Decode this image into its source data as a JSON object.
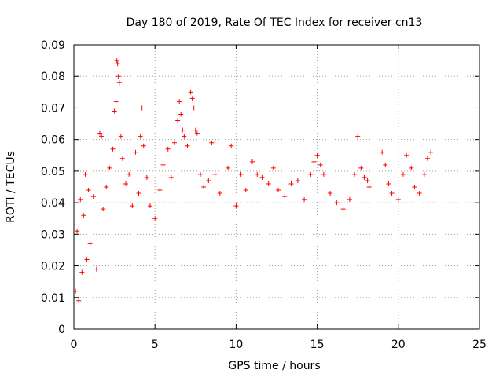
{
  "chart_data": {
    "type": "scatter",
    "title": "Day 180 of 2019, Rate Of TEC Index for receiver cn13",
    "xlabel": "GPS time / hours",
    "ylabel": "ROTI / TECUs",
    "xlim": [
      0,
      25
    ],
    "ylim": [
      0,
      0.09
    ],
    "xticks": [
      0,
      5,
      10,
      15,
      20,
      25
    ],
    "yticks": [
      0,
      0.01,
      0.02,
      0.03,
      0.04,
      0.05,
      0.06,
      0.07,
      0.08,
      0.09
    ],
    "xtick_labels": [
      "0",
      "5",
      "10",
      "15",
      "20",
      "25"
    ],
    "ytick_labels": [
      "0",
      "0.01",
      "0.02",
      "0.03",
      "0.04",
      "0.05",
      "0.06",
      "0.07",
      "0.08",
      "0.09"
    ],
    "grid": true,
    "marker": "+",
    "series_color": "#ff0000",
    "series": [
      {
        "name": "ROTI",
        "points": [
          [
            0.1,
            0.012
          ],
          [
            0.2,
            0.031
          ],
          [
            0.3,
            0.009
          ],
          [
            0.4,
            0.041
          ],
          [
            0.5,
            0.018
          ],
          [
            0.6,
            0.036
          ],
          [
            0.7,
            0.049
          ],
          [
            0.8,
            0.022
          ],
          [
            0.9,
            0.044
          ],
          [
            1.0,
            0.027
          ],
          [
            1.2,
            0.042
          ],
          [
            1.4,
            0.019
          ],
          [
            1.6,
            0.062
          ],
          [
            1.7,
            0.061
          ],
          [
            1.8,
            0.038
          ],
          [
            2.0,
            0.045
          ],
          [
            2.2,
            0.051
          ],
          [
            2.4,
            0.057
          ],
          [
            2.5,
            0.069
          ],
          [
            2.6,
            0.072
          ],
          [
            2.65,
            0.085
          ],
          [
            2.7,
            0.084
          ],
          [
            2.75,
            0.08
          ],
          [
            2.8,
            0.078
          ],
          [
            2.9,
            0.061
          ],
          [
            3.0,
            0.054
          ],
          [
            3.2,
            0.046
          ],
          [
            3.4,
            0.049
          ],
          [
            3.6,
            0.039
          ],
          [
            3.8,
            0.056
          ],
          [
            4.0,
            0.043
          ],
          [
            4.1,
            0.061
          ],
          [
            4.2,
            0.07
          ],
          [
            4.3,
            0.058
          ],
          [
            4.5,
            0.048
          ],
          [
            4.7,
            0.039
          ],
          [
            5.0,
            0.035
          ],
          [
            5.3,
            0.044
          ],
          [
            5.5,
            0.052
          ],
          [
            5.8,
            0.057
          ],
          [
            6.0,
            0.048
          ],
          [
            6.2,
            0.059
          ],
          [
            6.4,
            0.066
          ],
          [
            6.5,
            0.072
          ],
          [
            6.6,
            0.068
          ],
          [
            6.7,
            0.063
          ],
          [
            6.8,
            0.061
          ],
          [
            7.0,
            0.058
          ],
          [
            7.2,
            0.075
          ],
          [
            7.3,
            0.073
          ],
          [
            7.4,
            0.07
          ],
          [
            7.5,
            0.063
          ],
          [
            7.6,
            0.062
          ],
          [
            7.8,
            0.049
          ],
          [
            8.0,
            0.045
          ],
          [
            8.3,
            0.047
          ],
          [
            8.5,
            0.059
          ],
          [
            8.7,
            0.049
          ],
          [
            9.0,
            0.043
          ],
          [
            9.5,
            0.051
          ],
          [
            9.7,
            0.058
          ],
          [
            10.0,
            0.039
          ],
          [
            10.3,
            0.049
          ],
          [
            10.6,
            0.044
          ],
          [
            11.0,
            0.053
          ],
          [
            11.3,
            0.049
          ],
          [
            11.6,
            0.048
          ],
          [
            12.0,
            0.046
          ],
          [
            12.3,
            0.051
          ],
          [
            12.6,
            0.044
          ],
          [
            13.0,
            0.042
          ],
          [
            13.4,
            0.046
          ],
          [
            13.8,
            0.047
          ],
          [
            14.2,
            0.041
          ],
          [
            14.6,
            0.049
          ],
          [
            14.8,
            0.053
          ],
          [
            15.0,
            0.055
          ],
          [
            15.2,
            0.052
          ],
          [
            15.4,
            0.049
          ],
          [
            15.8,
            0.043
          ],
          [
            16.2,
            0.04
          ],
          [
            16.6,
            0.038
          ],
          [
            17.0,
            0.041
          ],
          [
            17.3,
            0.049
          ],
          [
            17.5,
            0.061
          ],
          [
            17.7,
            0.051
          ],
          [
            17.9,
            0.048
          ],
          [
            18.1,
            0.047
          ],
          [
            18.2,
            0.045
          ],
          [
            19.0,
            0.056
          ],
          [
            19.2,
            0.052
          ],
          [
            19.4,
            0.046
          ],
          [
            19.6,
            0.043
          ],
          [
            20.0,
            0.041
          ],
          [
            20.3,
            0.049
          ],
          [
            20.5,
            0.055
          ],
          [
            20.8,
            0.051
          ],
          [
            21.0,
            0.045
          ],
          [
            21.3,
            0.043
          ],
          [
            21.6,
            0.049
          ],
          [
            21.8,
            0.054
          ],
          [
            22.0,
            0.056
          ]
        ]
      }
    ]
  }
}
